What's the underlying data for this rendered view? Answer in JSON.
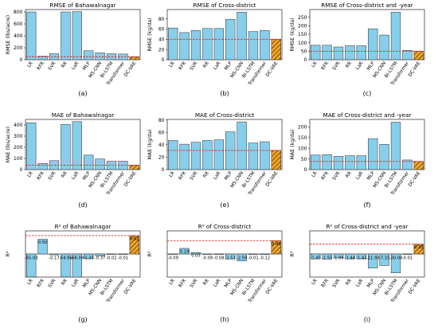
{
  "chart_data": [
    {
      "panel": "(a)",
      "type": "bar",
      "title": "RMSE of Bahawalnagar",
      "ylabel": "RMSE (lbs/acre)",
      "categories": [
        "LR",
        "RFR",
        "SVR",
        "RR",
        "LaR",
        "MLP",
        "MS-CNN",
        "Bi-LSTM",
        "Transformer",
        "DC-VAE"
      ],
      "values": [
        800,
        60,
        100,
        800,
        805,
        150,
        115,
        100,
        95,
        50
      ],
      "highlight": "DC-VAE",
      "reference_line": 50,
      "ylim": [
        0,
        840
      ],
      "yticks": [
        0,
        200,
        400,
        600,
        800
      ]
    },
    {
      "panel": "(b)",
      "type": "bar",
      "title": "RMSE of Cross-district",
      "ylabel": "RMSE (kg/da)",
      "categories": [
        "LR",
        "RFR",
        "SVR",
        "RR",
        "LaR",
        "MLP",
        "MS-CNN",
        "Bi-LSTM",
        "Transformer",
        "DC-VAE"
      ],
      "values": [
        62,
        53,
        57,
        61,
        61,
        79,
        93,
        55,
        57,
        40
      ],
      "highlight": "DC-VAE",
      "reference_line": 40,
      "ylim": [
        0,
        98
      ],
      "yticks": [
        0,
        20,
        40,
        60,
        80
      ]
    },
    {
      "panel": "(c)",
      "type": "bar",
      "title": "RMSE of Cross-district and -year",
      "ylabel": "RMSE (kg/da)",
      "categories": [
        "LR",
        "RFR",
        "SVR",
        "RR",
        "LaR",
        "MLP",
        "MS-CNN",
        "Bi-LSTM",
        "Transformer",
        "DC-VAE"
      ],
      "values": [
        85,
        85,
        75,
        82,
        82,
        182,
        145,
        280,
        55,
        50
      ],
      "highlight": "DC-VAE",
      "reference_line": 50,
      "ylim": [
        0,
        295
      ],
      "yticks": [
        0,
        50,
        100,
        150,
        200,
        250
      ]
    },
    {
      "panel": "(d)",
      "type": "bar",
      "title": "MAE of Bahawalnagar",
      "ylabel": "MAE (lbs/acre)",
      "categories": [
        "LR",
        "RFR",
        "SVR",
        "RR",
        "LaR",
        "MLP",
        "MS-CNN",
        "Bi-LSTM",
        "Transformer",
        "DC-VAE"
      ],
      "values": [
        420,
        55,
        80,
        405,
        430,
        130,
        95,
        75,
        75,
        40
      ],
      "highlight": "DC-VAE",
      "reference_line": 40,
      "ylim": [
        0,
        450
      ],
      "yticks": [
        0,
        100,
        200,
        300,
        400
      ]
    },
    {
      "panel": "(e)",
      "type": "bar",
      "title": "MAE of Cross-district",
      "ylabel": "MAE (kg/da)",
      "categories": [
        "LR",
        "RFR",
        "SVR",
        "RR",
        "LaR",
        "MLP",
        "MS-CNN",
        "Bi-LSTM",
        "Transformer",
        "DC-VAE"
      ],
      "values": [
        47,
        41,
        44,
        47,
        48,
        61,
        77,
        43,
        45,
        31
      ],
      "highlight": "DC-VAE",
      "reference_line": 31,
      "ylim": [
        0,
        81
      ],
      "yticks": [
        0,
        20,
        40,
        60,
        80
      ]
    },
    {
      "panel": "(f)",
      "type": "bar",
      "title": "MAE of Cross-district and -year",
      "ylabel": "MAE (kg/da)",
      "categories": [
        "LR",
        "RFR",
        "SVR",
        "RR",
        "LaR",
        "MLP",
        "MS-CNN",
        "Bi-LSTM",
        "Transformer",
        "DC-VAE"
      ],
      "values": [
        68,
        70,
        62,
        65,
        65,
        145,
        118,
        222,
        45,
        38
      ],
      "highlight": "DC-VAE",
      "reference_line": 38,
      "ylim": [
        0,
        235
      ],
      "yticks": [
        0,
        50,
        100,
        150,
        200
      ]
    },
    {
      "panel": "(g)",
      "type": "bar",
      "title": "R² of Bahawalnagar",
      "ylabel": "R²",
      "categories": [
        "LR",
        "RFR",
        "SVR",
        "RR",
        "LaR",
        "MLP",
        "MS-CNN",
        "Bi-LSTM",
        "Transformer",
        "DC-VAE"
      ],
      "values": [
        -65.03,
        0.5,
        -0.17,
        -64.96,
        -66.09,
        -1.25,
        -0.37,
        -0.02,
        -0.01,
        0.62
      ],
      "labels": [
        "-65.03",
        "0.50",
        "-0.17",
        "-64.96",
        "-66.09",
        "-1.25",
        "-0.37",
        "-0.02",
        "-0.01",
        "0.62"
      ],
      "highlight": "DC-VAE",
      "reference_line": 0.62
    },
    {
      "panel": "(h)",
      "type": "bar",
      "title": "R² of Cross-district",
      "ylabel": "R²",
      "categories": [
        "LR",
        "RFR",
        "SVR",
        "RR",
        "LaR",
        "MLP",
        "MS-CNN",
        "Bi-LSTM",
        "Transformer",
        "DC-VAE"
      ],
      "values": [
        -0.09,
        0.19,
        0.05,
        -0.09,
        -0.08,
        -1.51,
        -2.59,
        -0.01,
        -0.12,
        0.45
      ],
      "labels": [
        "-0.09",
        "0.19",
        "0.05",
        "-0.09",
        "-0.08",
        "-1.51",
        "-2.59",
        "-0.01",
        "-0.12",
        "0.45"
      ],
      "highlight": "DC-VAE",
      "reference_line": 0.45
    },
    {
      "panel": "(i)",
      "type": "bar",
      "title": "R² of Cross-district and -year",
      "ylabel": "R²",
      "categories": [
        "LR",
        "RFR",
        "SVR",
        "RR",
        "LaR",
        "MLP",
        "MS-CNN",
        "Bi-LSTM",
        "Transformer",
        "DC-VAE"
      ],
      "values": [
        -1.45,
        -1.55,
        -1.04,
        -1.44,
        -1.42,
        -11.93,
        -7.15,
        -30.08,
        -0.01,
        0.33
      ],
      "labels": [
        "-1.45",
        "-1.55",
        "-1.04",
        "-1.44",
        "-1.42",
        "-11.93",
        "-7.15",
        "-30.08",
        "-0.01",
        "0.33"
      ],
      "highlight": "DC-VAE",
      "reference_line": 0.33
    }
  ],
  "colors": {
    "bar": "#87ceeb",
    "bar_edge": "#2b2b2b",
    "highlight_fill": "#f5a623",
    "highlight_hatch": "#222222",
    "reference_line": "#d62728"
  }
}
